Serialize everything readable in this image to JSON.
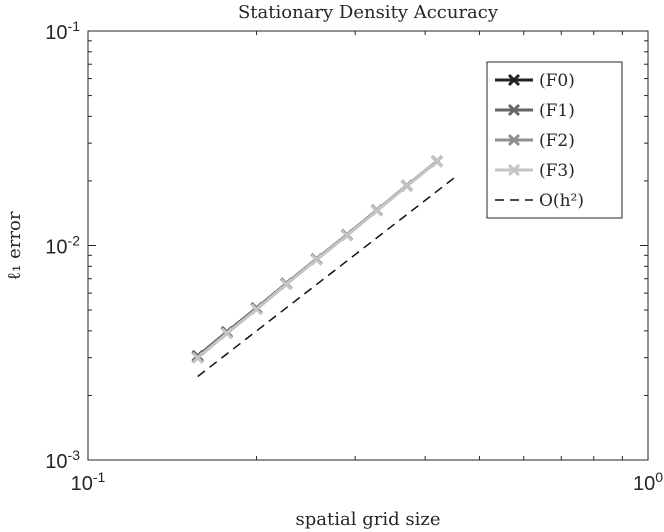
{
  "chart_data": {
    "type": "line",
    "title": "Stationary Density Accuracy",
    "xlabel": "spatial grid size",
    "ylabel": "ℓ₁ error",
    "xscale": "log",
    "yscale": "log",
    "xlim": [
      0.1,
      1
    ],
    "ylim": [
      0.001,
      0.1
    ],
    "xticks": [
      {
        "value": 0.1,
        "label": "10",
        "exp": "-1"
      },
      {
        "value": 1,
        "label": "10",
        "exp": "0"
      }
    ],
    "yticks": [
      {
        "value": 0.1,
        "label": "10",
        "exp": "-1"
      },
      {
        "value": 0.01,
        "label": "10",
        "exp": "-2"
      },
      {
        "value": 0.001,
        "label": "10",
        "exp": "-3"
      }
    ],
    "x": [
      0.157,
      0.177,
      0.2,
      0.226,
      0.256,
      0.29,
      0.328,
      0.371,
      0.42,
      0.45
    ],
    "series": [
      {
        "name": "(F0)",
        "color": "#222222",
        "marker": "x",
        "values": [
          0.00305,
          0.00395,
          0.0051,
          0.00665,
          0.00865,
          0.0112,
          0.0146,
          0.019,
          0.0247,
          null
        ]
      },
      {
        "name": "(F1)",
        "color": "#666666",
        "marker": "x",
        "values": [
          0.00303,
          0.00393,
          0.00508,
          0.00663,
          0.00863,
          0.01118,
          0.01458,
          0.01898,
          0.02468,
          null
        ]
      },
      {
        "name": "(F2)",
        "color": "#8f8f8f",
        "marker": "x",
        "values": [
          0.00301,
          0.00391,
          0.00506,
          0.00661,
          0.00861,
          0.01116,
          0.01456,
          0.01896,
          0.02466,
          null
        ]
      },
      {
        "name": "(F3)",
        "color": "#c4c4c4",
        "marker": "x",
        "values": [
          0.00299,
          0.00389,
          0.00504,
          0.00659,
          0.00859,
          0.01114,
          0.01454,
          0.01894,
          0.02464,
          null
        ]
      },
      {
        "name": "O(h²)",
        "color": "#111111",
        "marker": "none",
        "dashed": true,
        "values": [
          0.00245,
          null,
          null,
          null,
          null,
          null,
          null,
          null,
          null,
          0.0206
        ]
      }
    ],
    "legend": {
      "position": "top-right",
      "entries": [
        "(F0)",
        "(F1)",
        "(F2)",
        "(F3)",
        "O(h²)"
      ]
    },
    "grid": false
  }
}
